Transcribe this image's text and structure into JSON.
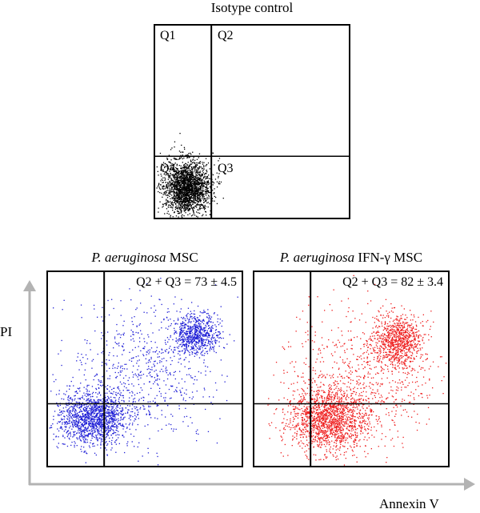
{
  "chart_data": [
    {
      "type": "scatter",
      "title": "Isotype control",
      "quadrant_labels": [
        "Q1",
        "Q2",
        "Q4",
        "Q3"
      ],
      "gates": {
        "x": 0.29,
        "y": 0.68
      },
      "xlim": [
        0,
        1
      ],
      "ylim": [
        0,
        1
      ],
      "series": [
        {
          "color": "#000000",
          "clusters": [
            {
              "cx": 0.16,
              "cy": 0.84,
              "sx": 0.06,
              "sy": 0.07,
              "n": 2200
            }
          ]
        }
      ]
    },
    {
      "type": "scatter",
      "title_italic": "P. aeruginosa",
      "title_rest": " MSC",
      "annotation": "Q2 + Q3 = 73 ± 4.5",
      "gates": {
        "x": 0.29,
        "y": 0.68
      },
      "xlim": [
        0,
        1
      ],
      "ylim": [
        0,
        1
      ],
      "series": [
        {
          "color": "#1f1fd6",
          "clusters": [
            {
              "cx": 0.23,
              "cy": 0.75,
              "sx": 0.09,
              "sy": 0.07,
              "n": 1400
            },
            {
              "cx": 0.76,
              "cy": 0.32,
              "sx": 0.06,
              "sy": 0.05,
              "n": 700
            },
            {
              "cx": 0.5,
              "cy": 0.5,
              "sx": 0.2,
              "sy": 0.18,
              "n": 700
            }
          ]
        }
      ]
    },
    {
      "type": "scatter",
      "title_italic": "P. aeruginosa",
      "title_rest": " IFN-γ MSC",
      "annotation": "Q2 + Q3 = 82 ± 3.4",
      "gates": {
        "x": 0.29,
        "y": 0.68
      },
      "xlim": [
        0,
        1
      ],
      "ylim": [
        0,
        1
      ],
      "series": [
        {
          "color": "#ee1c1c",
          "clusters": [
            {
              "cx": 0.38,
              "cy": 0.76,
              "sx": 0.1,
              "sy": 0.08,
              "n": 1500
            },
            {
              "cx": 0.74,
              "cy": 0.35,
              "sx": 0.06,
              "sy": 0.07,
              "n": 800
            },
            {
              "cx": 0.55,
              "cy": 0.55,
              "sx": 0.2,
              "sy": 0.18,
              "n": 800
            }
          ]
        }
      ]
    }
  ],
  "axes": {
    "ylabel": "PI",
    "xlabel": "Annexin V",
    "arrow_color": "#b3b3b3"
  }
}
